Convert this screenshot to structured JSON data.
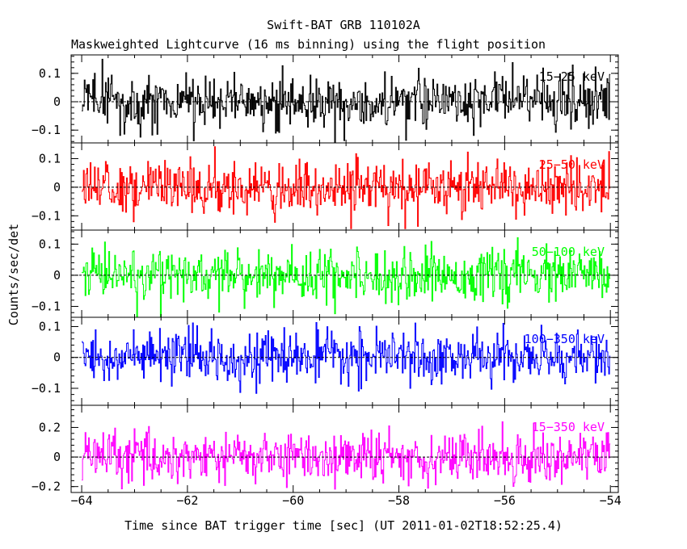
{
  "chart_data": {
    "type": "line",
    "title": "Swift-BAT GRB 110102A",
    "subtitle": "Maskweighted Lightcurve (16 ms binning) using the flight position",
    "xlabel": "Time since BAT trigger time [sec] (UT 2011-01-02T18:52:25.4)",
    "ylabel": "Counts/sec/det",
    "xlim": [
      -64.2,
      -53.85
    ],
    "x_major_ticks": [
      -64,
      -62,
      -60,
      -58,
      -56,
      -54
    ],
    "x_tick_labels": [
      "−64",
      "−62",
      "−60",
      "−58",
      "−56",
      "−54"
    ],
    "x_range_data": [
      -64.0,
      -54.0
    ],
    "bin_width_s": 0.016,
    "grid": false,
    "panels": [
      {
        "name": "15-25 keV",
        "label": "15−25 keV",
        "color": "#000000",
        "ylim": [
          -0.145,
          0.165
        ],
        "y_ticks": [
          -0.1,
          0,
          0.1
        ],
        "y_tick_labels": [
          "−0.1",
          "0",
          "0.1"
        ],
        "noise_sigma": 0.045,
        "noise_peak": 0.16
      },
      {
        "name": "25-50 keV",
        "label": "25−50 keV",
        "color": "#ff0000",
        "ylim": [
          -0.15,
          0.155
        ],
        "y_ticks": [
          -0.1,
          0,
          0.1
        ],
        "y_tick_labels": [
          "−0.1",
          "0",
          "0.1"
        ],
        "noise_sigma": 0.045,
        "noise_peak": 0.145
      },
      {
        "name": "50-100 keV",
        "label": "50−100 keV",
        "color": "#00ff00",
        "ylim": [
          -0.135,
          0.145
        ],
        "y_ticks": [
          -0.1,
          0,
          0.1
        ],
        "y_tick_labels": [
          "−0.1",
          "0",
          "0.1"
        ],
        "noise_sigma": 0.04,
        "noise_peak": 0.135
      },
      {
        "name": "100-350 keV",
        "label": "100−350 keV",
        "color": "#0000ff",
        "ylim": [
          -0.155,
          0.13
        ],
        "y_ticks": [
          -0.1,
          0,
          0.1
        ],
        "y_tick_labels": [
          "−0.1",
          "0",
          "0.1"
        ],
        "noise_sigma": 0.04,
        "noise_peak": 0.15
      },
      {
        "name": "15-350 keV",
        "label": "15−350 keV",
        "color": "#ff00ff",
        "ylim": [
          -0.24,
          0.35
        ],
        "y_ticks": [
          -0.2,
          0,
          0.2
        ],
        "y_tick_labels": [
          "−0.2",
          "0",
          "0.2"
        ],
        "minor_y_ticks": [
          -0.1,
          0.1,
          0.3
        ],
        "noise_sigma": 0.085,
        "noise_peak": 0.3
      }
    ]
  }
}
